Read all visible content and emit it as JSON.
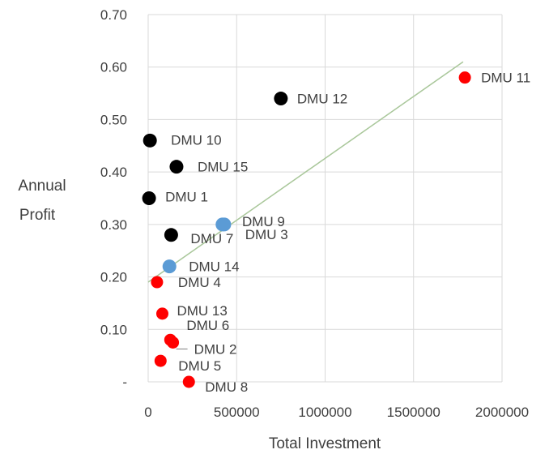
{
  "chart_data": {
    "type": "scatter",
    "title": "",
    "xlabel": "Total Investment",
    "ylabel_lines": [
      "Annual",
      "Profit"
    ],
    "xlim": [
      0,
      2000000
    ],
    "ylim": [
      0,
      0.7
    ],
    "x_ticks": [
      0,
      500000,
      1000000,
      1500000,
      2000000
    ],
    "x_tick_labels": [
      "0",
      "500000",
      "1000000",
      "1500000",
      "2000000"
    ],
    "y_ticks": [
      0,
      0.1,
      0.2,
      0.3,
      0.4,
      0.5,
      0.6,
      0.7
    ],
    "y_tick_labels": [
      "-",
      "0.10",
      "0.20",
      "0.30",
      "0.40",
      "0.50",
      "0.60",
      "0.70"
    ],
    "grid": true,
    "colors": {
      "black": "#000000",
      "blue": "#5b9bd5",
      "red": "#ff0000",
      "trendline": "#a9c79a"
    },
    "trendline": {
      "x": [
        0,
        1780000
      ],
      "y": [
        0.19,
        0.61
      ]
    },
    "points": [
      {
        "label": "DMU 1",
        "x": 5000,
        "y": 0.35,
        "color": "black"
      },
      {
        "label": "DMU 2",
        "x": 140000,
        "y": 0.075,
        "color": "red"
      },
      {
        "label": "DMU 3",
        "x": 420000,
        "y": 0.3,
        "color": "blue"
      },
      {
        "label": "DMU 4",
        "x": 50000,
        "y": 0.19,
        "color": "red"
      },
      {
        "label": "DMU 5",
        "x": 70000,
        "y": 0.04,
        "color": "red"
      },
      {
        "label": "DMU 6",
        "x": 125000,
        "y": 0.08,
        "color": "red"
      },
      {
        "label": "DMU 7",
        "x": 130000,
        "y": 0.28,
        "color": "black"
      },
      {
        "label": "DMU 8",
        "x": 230000,
        "y": 0.0,
        "color": "red"
      },
      {
        "label": "DMU 9",
        "x": 430000,
        "y": 0.3,
        "color": "blue"
      },
      {
        "label": "DMU 10",
        "x": 10000,
        "y": 0.46,
        "color": "black"
      },
      {
        "label": "DMU 11",
        "x": 1790000,
        "y": 0.58,
        "color": "red"
      },
      {
        "label": "DMU 12",
        "x": 750000,
        "y": 0.54,
        "color": "black"
      },
      {
        "label": "DMU 13",
        "x": 80000,
        "y": 0.13,
        "color": "red"
      },
      {
        "label": "DMU 14",
        "x": 120000,
        "y": 0.22,
        "color": "blue"
      },
      {
        "label": "DMU 15",
        "x": 160000,
        "y": 0.41,
        "color": "black"
      }
    ]
  }
}
